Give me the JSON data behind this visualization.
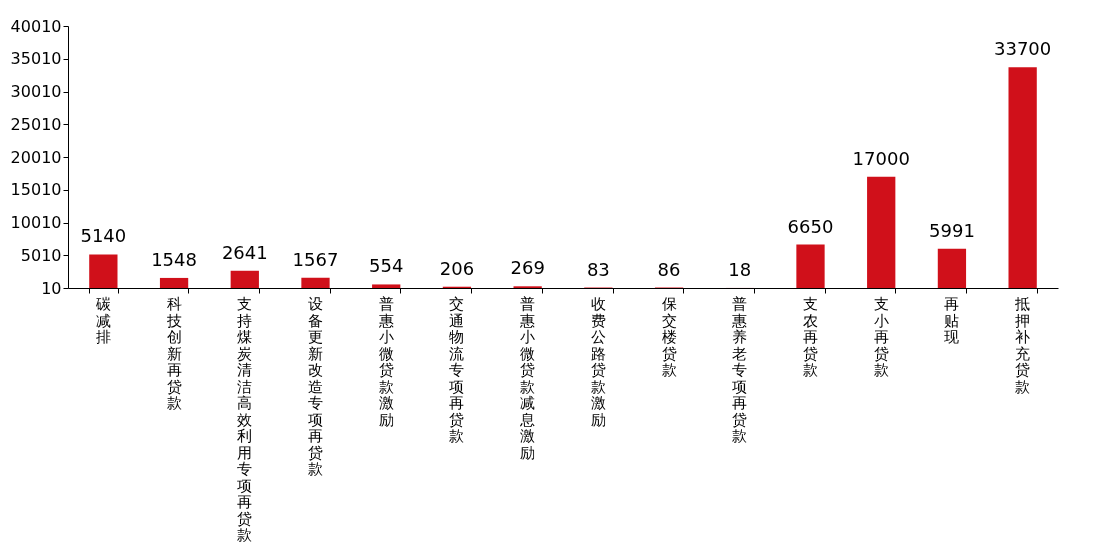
{
  "chart_data": {
    "type": "bar",
    "categories": [
      "碳减排",
      "科技创新再贷款",
      "支持煤炭清洁高效利用专项再贷款",
      "设备更新改造专项再贷款",
      "普惠小微贷款激励",
      "交通物流专项再贷款",
      "普惠小微贷款减息激励",
      "收费公路贷款激励",
      "保交楼贷款",
      "普惠养老专项再贷款",
      "支农再贷款",
      "支小再贷款",
      "再贴现",
      "抵押补充贷款"
    ],
    "values": [
      5140,
      1548,
      2641,
      1567,
      554,
      206,
      269,
      83,
      86,
      18,
      6650,
      17000,
      5991,
      33700
    ],
    "color": "#d0101a",
    "ylim": [
      10,
      40010
    ],
    "yticks": [
      10,
      5010,
      10010,
      15010,
      20010,
      25010,
      30010,
      35010,
      40010
    ],
    "grid": false,
    "data_labels": true
  }
}
